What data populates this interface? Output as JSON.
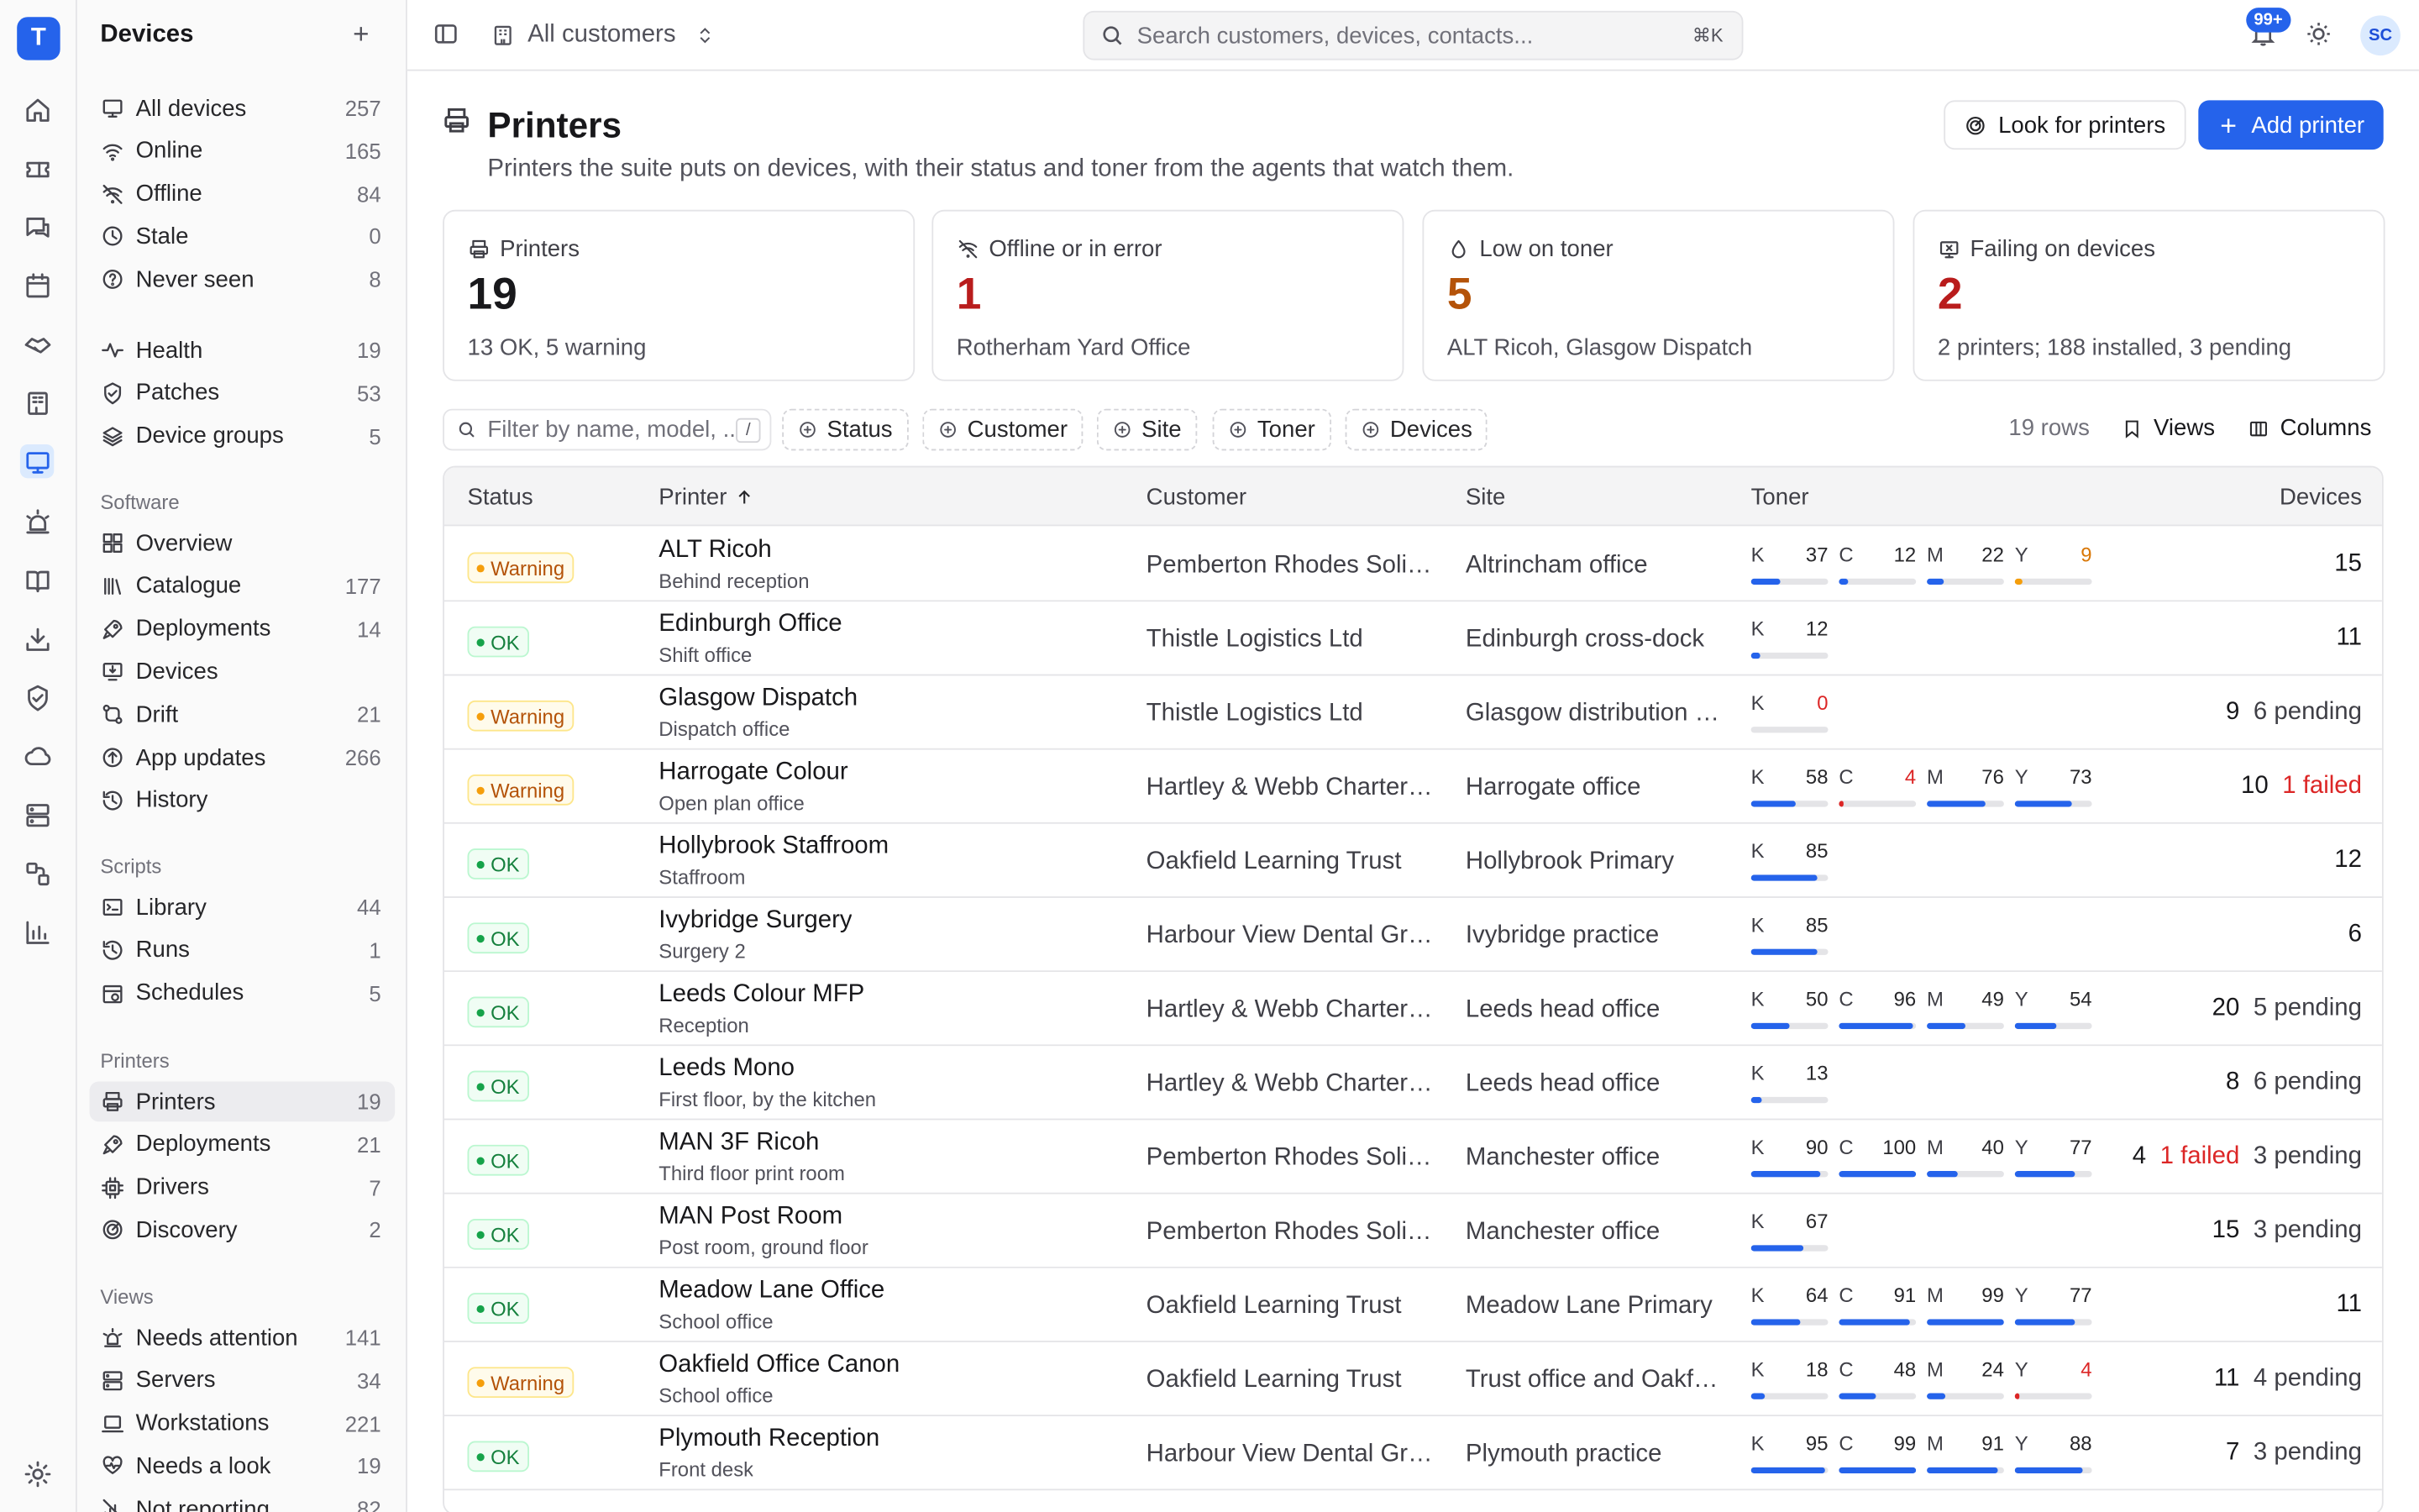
{
  "app": {
    "logo_letter": "T",
    "accent": "#2563eb"
  },
  "rail": {
    "icons": [
      "home-icon",
      "ticket-icon",
      "chat-icon",
      "calendar-icon",
      "handshake-icon",
      "building-icon",
      "monitor-icon",
      "alarm-icon",
      "book-icon",
      "download-tray-icon",
      "shield-icon",
      "cloud-icon",
      "server-icon",
      "workflow-icon",
      "bar-chart-icon",
      "settings-icon"
    ]
  },
  "sidebar": {
    "title": "Devices",
    "devices": [
      {
        "label": "All devices",
        "count": "257",
        "icon": "monitor-icon"
      },
      {
        "label": "Online",
        "count": "165",
        "icon": "wifi-icon"
      },
      {
        "label": "Offline",
        "count": "84",
        "icon": "wifi-off-icon"
      },
      {
        "label": "Stale",
        "count": "0",
        "icon": "clock-icon"
      },
      {
        "label": "Never seen",
        "count": "8",
        "icon": "question-icon"
      }
    ],
    "device_more": [
      {
        "label": "Health",
        "count": "19",
        "icon": "pulse-icon"
      },
      {
        "label": "Patches",
        "count": "53",
        "icon": "shield-check-icon"
      },
      {
        "label": "Device groups",
        "count": "5",
        "icon": "layers-icon"
      }
    ],
    "software_heading": "Software",
    "software": [
      {
        "label": "Overview",
        "count": "",
        "icon": "grid-icon"
      },
      {
        "label": "Catalogue",
        "count": "177",
        "icon": "library-icon"
      },
      {
        "label": "Deployments",
        "count": "14",
        "icon": "rocket-icon"
      },
      {
        "label": "Devices",
        "count": "",
        "icon": "screen-download-icon"
      },
      {
        "label": "Drift",
        "count": "21",
        "icon": "git-compare-icon"
      },
      {
        "label": "App updates",
        "count": "266",
        "icon": "arrow-up-circle-icon"
      },
      {
        "label": "History",
        "count": "",
        "icon": "history-icon"
      }
    ],
    "scripts_heading": "Scripts",
    "scripts": [
      {
        "label": "Library",
        "count": "44",
        "icon": "terminal-icon"
      },
      {
        "label": "Runs",
        "count": "1",
        "icon": "history-icon"
      },
      {
        "label": "Schedules",
        "count": "5",
        "icon": "calendar-clock-icon"
      }
    ],
    "printers_heading": "Printers",
    "printers": [
      {
        "label": "Printers",
        "count": "19",
        "icon": "printer-icon"
      },
      {
        "label": "Deployments",
        "count": "21",
        "icon": "rocket-icon"
      },
      {
        "label": "Drivers",
        "count": "7",
        "icon": "cpu-icon"
      },
      {
        "label": "Discovery",
        "count": "2",
        "icon": "radar-icon"
      }
    ],
    "views_heading": "Views",
    "views": [
      {
        "label": "Needs attention",
        "count": "141",
        "icon": "siren-icon"
      },
      {
        "label": "Servers",
        "count": "34",
        "icon": "server-icon"
      },
      {
        "label": "Workstations",
        "count": "221",
        "icon": "laptop-icon"
      },
      {
        "label": "Needs a look",
        "count": "19",
        "icon": "heart-pulse-icon"
      },
      {
        "label": "Not reporting",
        "count": "82",
        "icon": "signal-off-icon"
      }
    ]
  },
  "topbar": {
    "customer_select": "All customers",
    "search_placeholder": "Search customers, devices, contacts...",
    "search_shortcut": "⌘K",
    "notification_badge": "99+",
    "avatar_initials": "SC"
  },
  "page": {
    "title": "Printers",
    "subtitle": "Printers the suite puts on devices, with their status and toner from the agents that watch them.",
    "look_button": "Look for printers",
    "add_button": "Add printer"
  },
  "cards": [
    {
      "label": "Printers",
      "value": "19",
      "sub": "13 OK, 5 warning",
      "color": "#18181b",
      "icon": "printer-icon"
    },
    {
      "label": "Offline or in error",
      "value": "1",
      "sub": "Rotherham Yard Office",
      "color": "#b91c1c",
      "icon": "wifi-off-icon"
    },
    {
      "label": "Low on toner",
      "value": "5",
      "sub": "ALT Ricoh, Glasgow Dispatch",
      "color": "#b45309",
      "icon": "droplet-icon"
    },
    {
      "label": "Failing on devices",
      "value": "2",
      "sub": "2 printers; 188 installed, 3 pending",
      "color": "#b91c1c",
      "icon": "monitor-x-icon"
    }
  ],
  "toolbar": {
    "filter_placeholder": "Filter by name, model, ...",
    "filter_shortcut": "/",
    "chips": [
      "Status",
      "Customer",
      "Site",
      "Toner",
      "Devices"
    ],
    "rows_count": "19 rows",
    "views_label": "Views",
    "columns_label": "Columns"
  },
  "table": {
    "headers": {
      "status": "Status",
      "printer": "Printer",
      "customer": "Customer",
      "site": "Site",
      "toner": "Toner",
      "devices": "Devices"
    },
    "rows": [
      {
        "status": "Warning",
        "name": "ALT Ricoh",
        "location": "Behind reception",
        "customer": "Pemberton Rhodes Solicitors",
        "site": "Altrincham office",
        "toner": [
          {
            "c": "K",
            "v": 37
          },
          {
            "c": "C",
            "v": 12
          },
          {
            "c": "M",
            "v": 22
          },
          {
            "c": "Y",
            "v": 9,
            "t": "amber"
          }
        ],
        "devices": "15",
        "failed": "",
        "pending": ""
      },
      {
        "status": "OK",
        "name": "Edinburgh Office",
        "location": "Shift office",
        "customer": "Thistle Logistics Ltd",
        "site": "Edinburgh cross-dock",
        "toner": [
          {
            "c": "K",
            "v": 12
          }
        ],
        "devices": "11",
        "failed": "",
        "pending": ""
      },
      {
        "status": "Warning",
        "name": "Glasgow Dispatch",
        "location": "Dispatch office",
        "customer": "Thistle Logistics Ltd",
        "site": "Glasgow distribution centre",
        "toner": [
          {
            "c": "K",
            "v": 0,
            "t": "red"
          }
        ],
        "devices": "9",
        "failed": "",
        "pending": "6 pending"
      },
      {
        "status": "Warning",
        "name": "Harrogate Colour",
        "location": "Open plan office",
        "customer": "Hartley & Webb Chartered",
        "site": "Harrogate office",
        "toner": [
          {
            "c": "K",
            "v": 58
          },
          {
            "c": "C",
            "v": 4,
            "t": "red"
          },
          {
            "c": "M",
            "v": 76
          },
          {
            "c": "Y",
            "v": 73
          }
        ],
        "devices": "10",
        "failed": "1 failed",
        "pending": ""
      },
      {
        "status": "OK",
        "name": "Hollybrook Staffroom",
        "location": "Staffroom",
        "customer": "Oakfield Learning Trust",
        "site": "Hollybrook Primary",
        "toner": [
          {
            "c": "K",
            "v": 85
          }
        ],
        "devices": "12",
        "failed": "",
        "pending": ""
      },
      {
        "status": "OK",
        "name": "Ivybridge Surgery",
        "location": "Surgery 2",
        "customer": "Harbour View Dental Group",
        "site": "Ivybridge practice",
        "toner": [
          {
            "c": "K",
            "v": 85
          }
        ],
        "devices": "6",
        "failed": "",
        "pending": ""
      },
      {
        "status": "OK",
        "name": "Leeds Colour MFP",
        "location": "Reception",
        "customer": "Hartley & Webb Chartered",
        "site": "Leeds head office",
        "toner": [
          {
            "c": "K",
            "v": 50
          },
          {
            "c": "C",
            "v": 96
          },
          {
            "c": "M",
            "v": 49
          },
          {
            "c": "Y",
            "v": 54
          }
        ],
        "devices": "20",
        "failed": "",
        "pending": "5 pending"
      },
      {
        "status": "OK",
        "name": "Leeds Mono",
        "location": "First floor, by the kitchen",
        "customer": "Hartley & Webb Chartered",
        "site": "Leeds head office",
        "toner": [
          {
            "c": "K",
            "v": 13
          }
        ],
        "devices": "8",
        "failed": "",
        "pending": "6 pending"
      },
      {
        "status": "OK",
        "name": "MAN 3F Ricoh",
        "location": "Third floor print room",
        "customer": "Pemberton Rhodes Solicitors",
        "site": "Manchester office",
        "toner": [
          {
            "c": "K",
            "v": 90
          },
          {
            "c": "C",
            "v": 100
          },
          {
            "c": "M",
            "v": 40
          },
          {
            "c": "Y",
            "v": 77
          }
        ],
        "devices": "4",
        "failed": "1 failed",
        "pending": "3 pending"
      },
      {
        "status": "OK",
        "name": "MAN Post Room",
        "location": "Post room, ground floor",
        "customer": "Pemberton Rhodes Solicitors",
        "site": "Manchester office",
        "toner": [
          {
            "c": "K",
            "v": 67
          }
        ],
        "devices": "15",
        "failed": "",
        "pending": "3 pending"
      },
      {
        "status": "OK",
        "name": "Meadow Lane Office",
        "location": "School office",
        "customer": "Oakfield Learning Trust",
        "site": "Meadow Lane Primary",
        "toner": [
          {
            "c": "K",
            "v": 64
          },
          {
            "c": "C",
            "v": 91
          },
          {
            "c": "M",
            "v": 99
          },
          {
            "c": "Y",
            "v": 77
          }
        ],
        "devices": "11",
        "failed": "",
        "pending": ""
      },
      {
        "status": "Warning",
        "name": "Oakfield Office Canon",
        "location": "School office",
        "customer": "Oakfield Learning Trust",
        "site": "Trust office and Oakfield",
        "toner": [
          {
            "c": "K",
            "v": 18
          },
          {
            "c": "C",
            "v": 48
          },
          {
            "c": "M",
            "v": 24
          },
          {
            "c": "Y",
            "v": 4,
            "t": "red"
          }
        ],
        "devices": "11",
        "failed": "",
        "pending": "4 pending"
      },
      {
        "status": "OK",
        "name": "Plymouth Reception",
        "location": "Front desk",
        "customer": "Harbour View Dental Group",
        "site": "Plymouth practice",
        "toner": [
          {
            "c": "K",
            "v": 95
          },
          {
            "c": "C",
            "v": 99
          },
          {
            "c": "M",
            "v": 91
          },
          {
            "c": "Y",
            "v": 88
          }
        ],
        "devices": "7",
        "failed": "",
        "pending": "3 pending"
      }
    ]
  }
}
